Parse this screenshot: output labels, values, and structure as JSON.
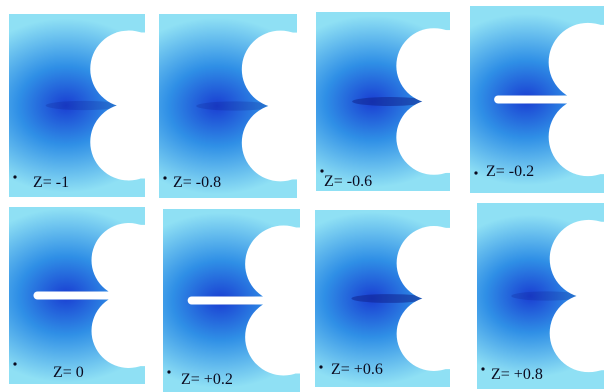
{
  "figure": {
    "panels": [
      {
        "label": "Z= -1",
        "needle": "none"
      },
      {
        "label": "Z= -0.8",
        "needle": "none"
      },
      {
        "label": "Z= -0.6",
        "needle": "faint"
      },
      {
        "label": "Z= -0.2",
        "needle": "bright"
      },
      {
        "label": "Z= 0",
        "needle": "bright"
      },
      {
        "label": "Z= +0.2",
        "needle": "bright"
      },
      {
        "label": "Z= +0.6",
        "needle": "faint"
      },
      {
        "label": "Z= +0.8",
        "needle": "none"
      }
    ]
  },
  "colors": {
    "field_outer": "#8fe0f4",
    "field_mid": "#2f8fe6",
    "field_core": "#1a3ed2",
    "streak": "#10248e",
    "needle": "#ffffff",
    "background": "#ffffff"
  }
}
